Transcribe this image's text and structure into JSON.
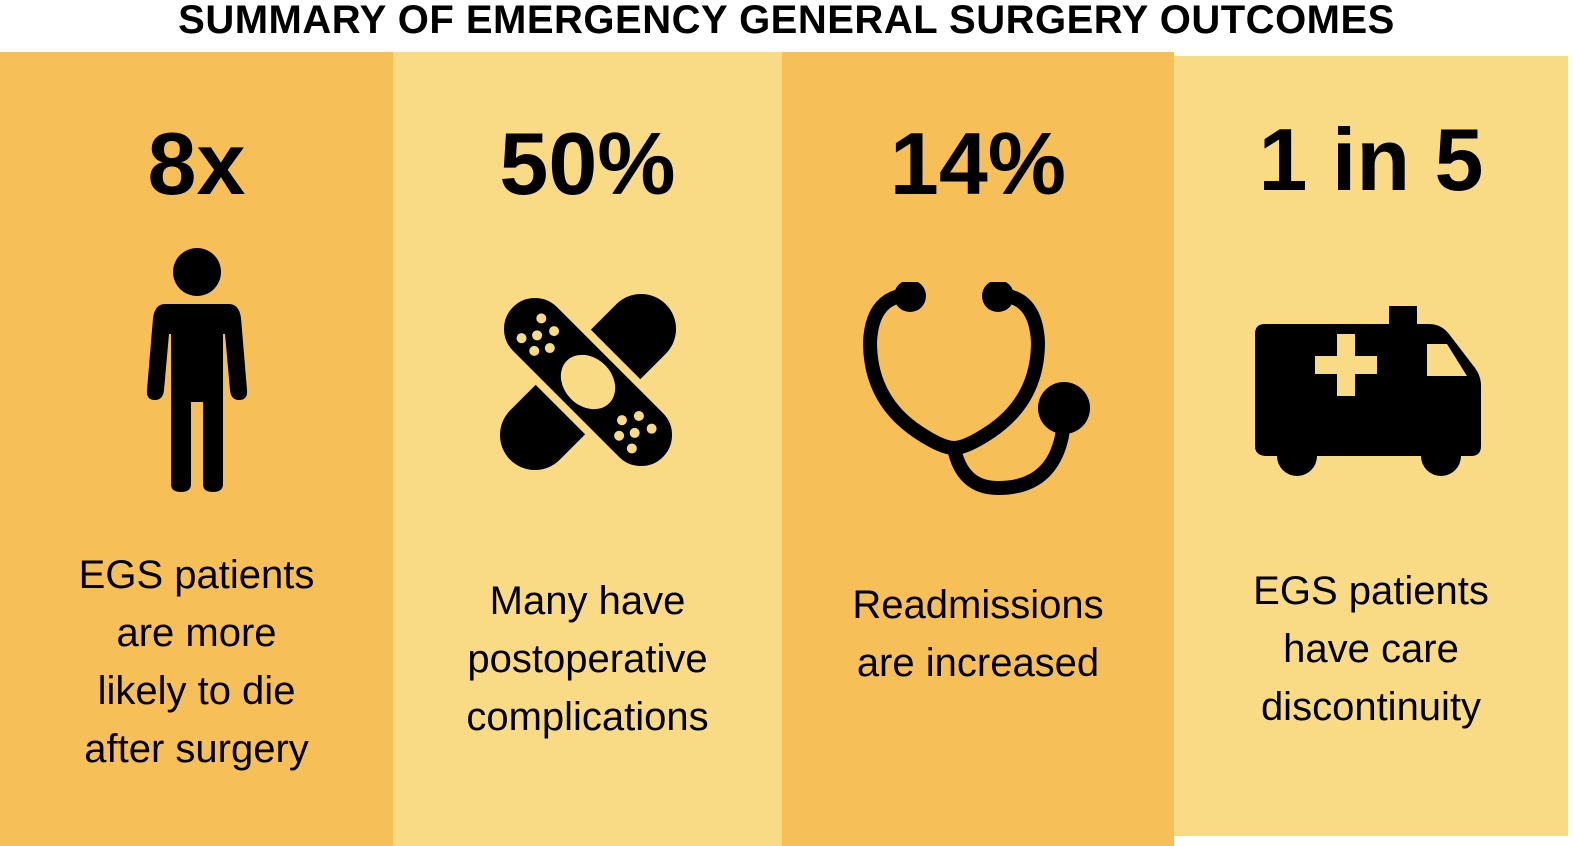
{
  "title": "SUMMARY OF EMERGENCY GENERAL SURGERY OUTCOMES",
  "colors": {
    "dark_panel": "#F6BF58",
    "light_panel": "#F9DA85",
    "icon": "#000000",
    "icon_accent": "#F9DA85"
  },
  "panels": [
    {
      "stat": "8x",
      "icon": "person-icon",
      "caption": "EGS patients\nare more\nlikely to die\nafter surgery"
    },
    {
      "stat": "50%",
      "icon": "bandage-icon",
      "caption": "Many have\npostoperative\ncomplications"
    },
    {
      "stat": "14%",
      "icon": "stethoscope-icon",
      "caption": "Readmissions\nare increased"
    },
    {
      "stat": "1 in 5",
      "icon": "ambulance-icon",
      "caption": "EGS patients\nhave care\ndiscontinuity"
    }
  ]
}
